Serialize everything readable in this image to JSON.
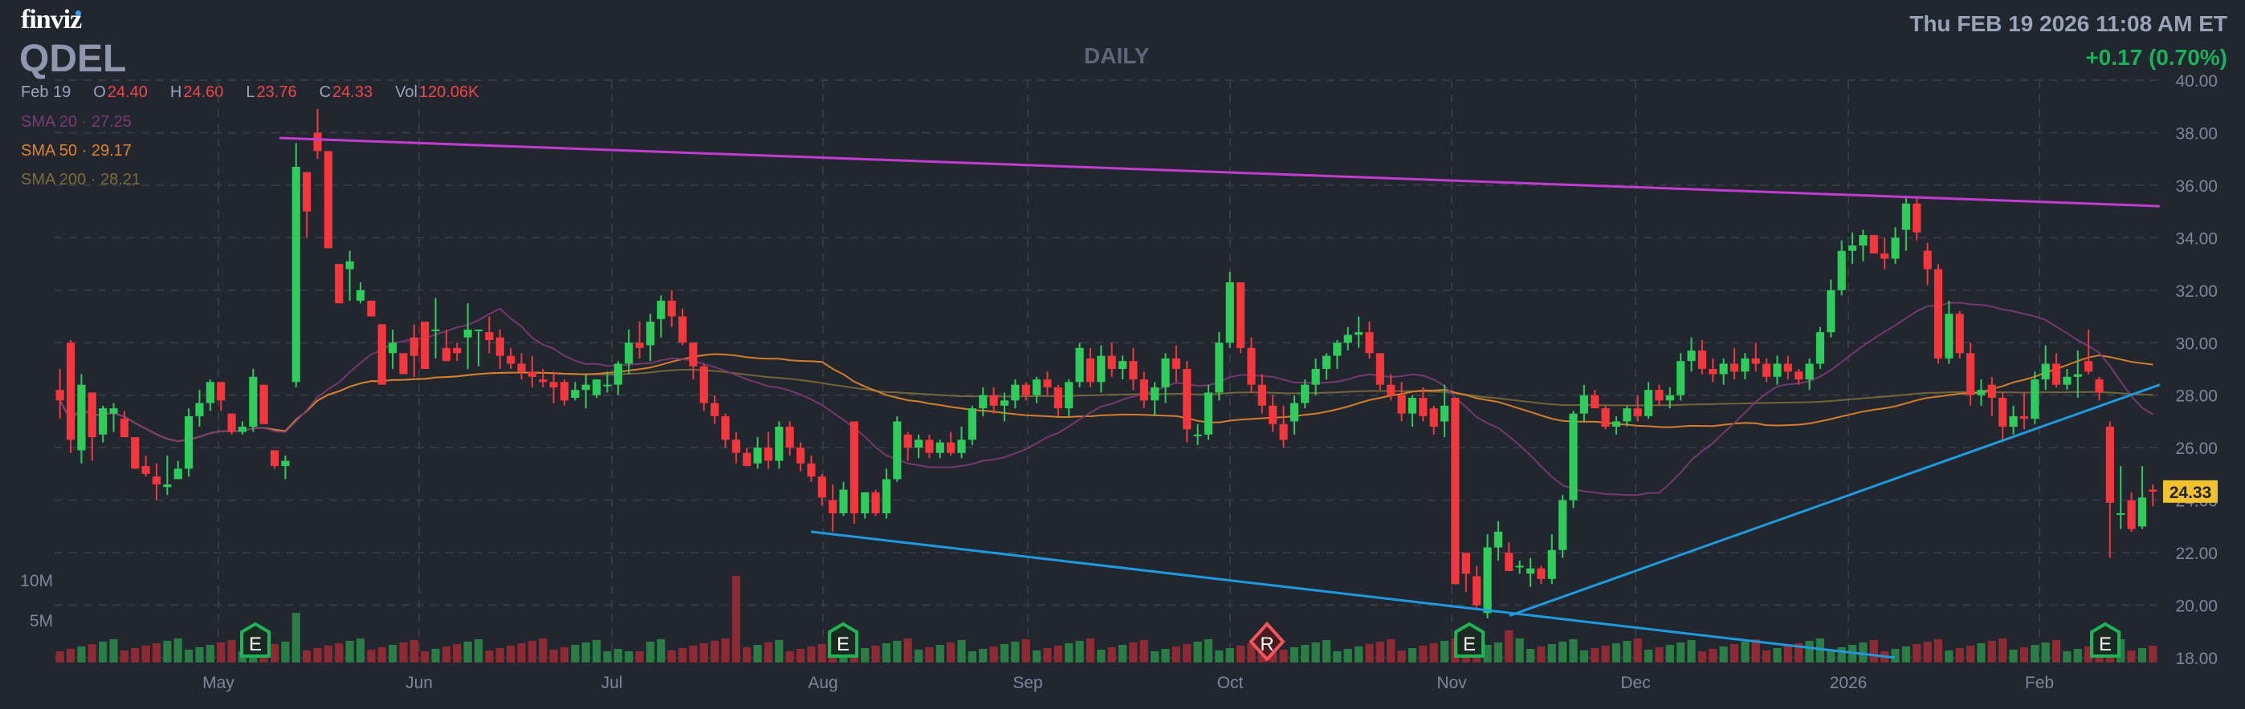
{
  "header": {
    "logo": "finviz",
    "ticker": "QDEL",
    "timeframe": "DAILY",
    "datetime": "Thu FEB 19 2026 11:08 AM ET",
    "change": "+0.17 (0.70%)"
  },
  "ohlc": {
    "date": "Feb 19",
    "open_label": "O",
    "open": "24.40",
    "high_label": "H",
    "high": "24.60",
    "low_label": "L",
    "low": "23.76",
    "close_label": "C",
    "close": "24.33",
    "vol_label": "Vol",
    "vol": "120.06K"
  },
  "indicators": [
    {
      "label": "SMA 20",
      "value": "27.25",
      "color": "#7a3a72"
    },
    {
      "label": "SMA 50",
      "value": "29.17",
      "color": "#e0822a"
    },
    {
      "label": "SMA 200",
      "value": "28.21",
      "color": "#7d6c3a"
    }
  ],
  "last_price_tag": "24.33",
  "colors": {
    "background": "#22262f",
    "up": "#2ecc5a",
    "down": "#f5363d",
    "vol_up": "#2a7d45",
    "vol_down": "#8d2a33",
    "trend_magenta": "#c13ccf",
    "trend_blue": "#1e9be0",
    "price_tag": "#f2c12e"
  },
  "chart_data": {
    "type": "candlestick",
    "title": "QDEL DAILY",
    "ylabel": "Price",
    "ylim": [
      18,
      40
    ],
    "y_ticks": [
      "40.00",
      "38.00",
      "36.00",
      "34.00",
      "32.00",
      "30.00",
      "28.00",
      "26.00",
      "24.00",
      "22.00",
      "20.00",
      "18.00"
    ],
    "x_ticks": [
      "May",
      "Jun",
      "Jul",
      "Aug",
      "Sep",
      "Oct",
      "Nov",
      "Dec",
      "2026",
      "Feb"
    ],
    "volume_ticks": [
      "10M",
      "5M"
    ],
    "grid": true,
    "events": [
      {
        "type": "E",
        "label": "Earnings",
        "x_month": "May"
      },
      {
        "type": "E",
        "label": "Earnings",
        "x_month": "Aug"
      },
      {
        "type": "R",
        "label": "Revenue",
        "x_month": "Oct"
      },
      {
        "type": "E",
        "label": "Earnings",
        "x_month": "Nov"
      },
      {
        "type": "E",
        "label": "Earnings",
        "x_month": "Feb"
      }
    ],
    "trendlines": [
      {
        "color": "magenta",
        "from": {
          "date": "May 9",
          "price": 37.8
        },
        "to": {
          "date": "Feb 19",
          "price": 35.2
        }
      },
      {
        "color": "blue",
        "from": {
          "date": "Aug 1",
          "price": 22.8
        },
        "to": {
          "date": "Jan 5",
          "price": 18.0
        }
      },
      {
        "color": "blue",
        "from": {
          "date": "Nov 10",
          "price": 19.6
        },
        "to": {
          "date": "Feb 19",
          "price": 28.4
        }
      }
    ],
    "series": [
      {
        "name": "SMA 20",
        "last": 27.25
      },
      {
        "name": "SMA 50",
        "last": 29.17
      },
      {
        "name": "SMA 200",
        "last": 28.21
      }
    ],
    "candles": [
      [
        28.2,
        29.0,
        27.1,
        27.8
      ],
      [
        30.0,
        30.1,
        25.8,
        26.3
      ],
      [
        25.9,
        28.8,
        25.4,
        28.4
      ],
      [
        28.1,
        28.1,
        25.5,
        26.4
      ],
      [
        26.5,
        27.6,
        26.2,
        27.5
      ],
      [
        27.3,
        27.7,
        26.6,
        27.5
      ],
      [
        27.1,
        27.4,
        26.4,
        26.4
      ],
      [
        26.4,
        26.4,
        25.4,
        25.2
      ],
      [
        25.3,
        25.7,
        24.9,
        25.0
      ],
      [
        24.9,
        25.4,
        24.0,
        24.6
      ],
      [
        24.5,
        25.7,
        24.2,
        24.6
      ],
      [
        24.8,
        25.5,
        24.8,
        25.2
      ],
      [
        25.2,
        27.5,
        24.9,
        27.2
      ],
      [
        27.2,
        28.2,
        26.8,
        27.7
      ],
      [
        27.7,
        28.6,
        27.4,
        28.5
      ],
      [
        28.5,
        28.5,
        27.4,
        27.8
      ],
      [
        27.3,
        27.3,
        26.5,
        26.6
      ],
      [
        26.6,
        27.0,
        26.5,
        26.8
      ],
      [
        26.8,
        29.0,
        26.6,
        28.7
      ],
      [
        28.4,
        28.4,
        26.9,
        26.9
      ],
      [
        25.9,
        25.9,
        25.2,
        25.3
      ],
      [
        25.3,
        25.7,
        24.8,
        25.5
      ],
      [
        28.5,
        37.6,
        28.3,
        36.7
      ],
      [
        36.5,
        36.5,
        34.0,
        35.0
      ],
      [
        38.0,
        38.9,
        37.0,
        37.3
      ],
      [
        37.3,
        37.0,
        33.9,
        33.6
      ],
      [
        33.0,
        32.9,
        31.8,
        31.5
      ],
      [
        32.8,
        33.5,
        31.6,
        33.1
      ],
      [
        31.6,
        32.3,
        31.5,
        32.0
      ],
      [
        31.6,
        31.4,
        31.3,
        31.0
      ],
      [
        30.7,
        30.6,
        29.2,
        28.4
      ],
      [
        29.6,
        30.5,
        29.0,
        30.0
      ],
      [
        29.6,
        29.6,
        29.4,
        28.8
      ],
      [
        30.2,
        30.7,
        28.7,
        29.5
      ],
      [
        30.8,
        30.5,
        29.6,
        29.0
      ],
      [
        30.5,
        31.7,
        29.4,
        30.5
      ],
      [
        29.8,
        30.5,
        29.8,
        29.3
      ],
      [
        29.8,
        30.0,
        29.3,
        29.6
      ],
      [
        30.2,
        31.5,
        29.0,
        30.5
      ],
      [
        30.5,
        30.5,
        29.1,
        30.5
      ],
      [
        30.4,
        31.0,
        29.6,
        30.1
      ],
      [
        30.2,
        30.5,
        29.0,
        29.5
      ],
      [
        29.5,
        29.8,
        29.0,
        29.2
      ],
      [
        29.2,
        29.6,
        28.6,
        28.9
      ],
      [
        28.9,
        29.5,
        28.3,
        28.7
      ],
      [
        28.6,
        29.0,
        28.3,
        28.5
      ],
      [
        28.5,
        28.9,
        27.7,
        28.3
      ],
      [
        28.5,
        28.6,
        27.6,
        27.8
      ],
      [
        27.9,
        28.5,
        27.8,
        28.2
      ],
      [
        28.2,
        28.8,
        27.5,
        28.4
      ],
      [
        28.0,
        28.6,
        27.9,
        28.6
      ],
      [
        28.4,
        28.9,
        28.1,
        28.4
      ],
      [
        28.4,
        29.3,
        28.0,
        29.2
      ],
      [
        29.2,
        30.5,
        28.8,
        30.0
      ],
      [
        30.0,
        30.8,
        29.4,
        29.8
      ],
      [
        29.9,
        31.1,
        29.3,
        30.8
      ],
      [
        30.9,
        31.8,
        30.2,
        31.6
      ],
      [
        31.6,
        32.0,
        30.6,
        31.0
      ],
      [
        31.0,
        31.3,
        29.9,
        30.0
      ],
      [
        30.0,
        30.0,
        28.6,
        29.1
      ],
      [
        29.1,
        29.2,
        27.4,
        27.7
      ],
      [
        27.7,
        28.0,
        26.9,
        27.2
      ],
      [
        27.2,
        27.3,
        26.0,
        26.3
      ],
      [
        26.3,
        26.6,
        25.4,
        25.8
      ],
      [
        25.8,
        26.0,
        25.3,
        25.3
      ],
      [
        25.4,
        26.4,
        25.2,
        26.0
      ],
      [
        26.0,
        26.6,
        25.2,
        25.5
      ],
      [
        25.5,
        27.0,
        25.2,
        26.8
      ],
      [
        26.8,
        27.0,
        25.7,
        26.0
      ],
      [
        26.0,
        26.2,
        25.1,
        25.4
      ],
      [
        25.4,
        25.7,
        24.7,
        24.9
      ],
      [
        24.9,
        25.0,
        23.8,
        24.1
      ],
      [
        24.0,
        24.6,
        22.8,
        23.5
      ],
      [
        23.5,
        24.7,
        23.4,
        24.4
      ],
      [
        27.0,
        27.0,
        23.1,
        23.5
      ],
      [
        23.5,
        24.3,
        23.3,
        24.3
      ],
      [
        24.3,
        24.4,
        23.4,
        23.5
      ],
      [
        23.5,
        25.2,
        23.3,
        24.8
      ],
      [
        24.8,
        27.2,
        24.7,
        27.0
      ],
      [
        26.5,
        26.6,
        25.5,
        26.0
      ],
      [
        26.0,
        26.5,
        25.6,
        26.3
      ],
      [
        26.3,
        26.5,
        25.6,
        25.8
      ],
      [
        25.8,
        26.3,
        25.6,
        26.2
      ],
      [
        26.2,
        26.6,
        25.7,
        25.8
      ],
      [
        25.8,
        26.8,
        25.6,
        26.3
      ],
      [
        26.3,
        27.6,
        26.1,
        27.5
      ],
      [
        27.5,
        28.3,
        27.2,
        28.0
      ],
      [
        28.0,
        28.3,
        27.3,
        27.6
      ],
      [
        27.6,
        28.1,
        27.0,
        27.8
      ],
      [
        27.8,
        28.6,
        27.5,
        28.4
      ],
      [
        28.4,
        28.5,
        27.8,
        28.0
      ],
      [
        28.0,
        28.7,
        27.7,
        28.6
      ],
      [
        28.6,
        28.9,
        28.0,
        28.3
      ],
      [
        28.3,
        28.4,
        27.2,
        27.5
      ],
      [
        27.5,
        28.6,
        27.2,
        28.5
      ],
      [
        28.5,
        30.0,
        28.3,
        29.8
      ],
      [
        29.4,
        29.8,
        28.3,
        28.5
      ],
      [
        28.5,
        29.9,
        28.1,
        29.5
      ],
      [
        29.5,
        30.0,
        28.7,
        29.0
      ],
      [
        29.0,
        29.5,
        28.6,
        29.3
      ],
      [
        29.3,
        29.8,
        28.2,
        28.6
      ],
      [
        28.6,
        28.9,
        27.5,
        27.8
      ],
      [
        27.8,
        28.5,
        27.2,
        28.3
      ],
      [
        28.3,
        29.6,
        27.7,
        29.4
      ],
      [
        29.4,
        29.9,
        28.5,
        29.0
      ],
      [
        29.0,
        29.3,
        26.2,
        26.7
      ],
      [
        26.5,
        26.9,
        26.1,
        26.5
      ],
      [
        26.5,
        28.4,
        26.3,
        28.1
      ],
      [
        28.1,
        30.4,
        27.8,
        30.0
      ],
      [
        30.0,
        32.7,
        29.8,
        32.3
      ],
      [
        32.3,
        32.0,
        29.6,
        29.8
      ],
      [
        29.8,
        30.2,
        28.1,
        28.4
      ],
      [
        28.4,
        28.8,
        27.3,
        27.6
      ],
      [
        27.6,
        28.0,
        26.6,
        26.9
      ],
      [
        26.9,
        27.6,
        26.0,
        26.3
      ],
      [
        27.0,
        28.0,
        26.5,
        27.7
      ],
      [
        27.7,
        28.6,
        27.5,
        28.4
      ],
      [
        28.4,
        29.4,
        28.0,
        29.0
      ],
      [
        29.0,
        29.6,
        28.6,
        29.5
      ],
      [
        29.5,
        30.1,
        29.0,
        30.0
      ],
      [
        30.0,
        30.6,
        29.7,
        30.3
      ],
      [
        30.3,
        31.0,
        29.8,
        30.4
      ],
      [
        30.4,
        30.8,
        29.4,
        29.6
      ],
      [
        29.6,
        29.6,
        28.2,
        28.4
      ],
      [
        28.4,
        28.8,
        27.8,
        28.0
      ],
      [
        28.0,
        28.5,
        27.0,
        27.3
      ],
      [
        27.3,
        28.0,
        26.8,
        27.9
      ],
      [
        27.9,
        28.3,
        27.0,
        27.2
      ],
      [
        27.5,
        27.6,
        26.5,
        26.8
      ],
      [
        27.0,
        28.4,
        26.4,
        27.6
      ],
      [
        27.9,
        26.3,
        24.0,
        20.8
      ],
      [
        22.0,
        22.0,
        20.5,
        21.2
      ],
      [
        21.1,
        21.5,
        19.9,
        20.0
      ],
      [
        19.7,
        22.7,
        19.5,
        22.2
      ],
      [
        22.2,
        23.2,
        21.7,
        22.8
      ],
      [
        22.0,
        22.4,
        21.3,
        21.3
      ],
      [
        21.5,
        21.7,
        21.2,
        21.5
      ],
      [
        21.2,
        21.8,
        20.7,
        21.4
      ],
      [
        21.4,
        21.5,
        20.8,
        21.0
      ],
      [
        21.0,
        22.7,
        20.8,
        22.1
      ],
      [
        22.1,
        24.2,
        21.8,
        24.0
      ],
      [
        24.0,
        27.4,
        23.7,
        27.3
      ],
      [
        27.3,
        28.4,
        27.0,
        28.0
      ],
      [
        28.0,
        28.2,
        27.5,
        27.5
      ],
      [
        27.5,
        27.6,
        26.7,
        26.8
      ],
      [
        26.8,
        27.2,
        26.5,
        27.0
      ],
      [
        27.0,
        27.6,
        26.8,
        27.5
      ],
      [
        27.5,
        28.0,
        27.0,
        27.2
      ],
      [
        27.2,
        28.5,
        27.1,
        28.2
      ],
      [
        28.2,
        28.4,
        27.6,
        27.8
      ],
      [
        27.8,
        28.3,
        27.5,
        28.0
      ],
      [
        28.0,
        29.6,
        27.8,
        29.3
      ],
      [
        29.3,
        30.2,
        28.9,
        29.7
      ],
      [
        29.7,
        30.1,
        28.8,
        29.0
      ],
      [
        29.0,
        29.4,
        28.5,
        28.8
      ],
      [
        28.8,
        29.4,
        28.4,
        29.2
      ],
      [
        29.2,
        29.8,
        28.6,
        28.9
      ],
      [
        28.9,
        29.6,
        28.6,
        29.4
      ],
      [
        29.4,
        30.0,
        28.9,
        29.2
      ],
      [
        29.2,
        29.4,
        28.5,
        28.7
      ],
      [
        28.7,
        29.5,
        28.4,
        29.2
      ],
      [
        29.2,
        29.5,
        28.6,
        28.9
      ],
      [
        28.9,
        29.0,
        28.4,
        28.6
      ],
      [
        28.6,
        29.4,
        28.2,
        29.2
      ],
      [
        29.2,
        30.6,
        29.0,
        30.4
      ],
      [
        30.4,
        32.4,
        30.2,
        32.0
      ],
      [
        32.0,
        33.9,
        31.8,
        33.5
      ],
      [
        33.5,
        34.2,
        33.0,
        33.7
      ],
      [
        33.7,
        34.3,
        33.1,
        34.1
      ],
      [
        34.1,
        33.9,
        33.5,
        33.4
      ],
      [
        33.4,
        34.0,
        32.8,
        33.2
      ],
      [
        33.2,
        34.4,
        33.0,
        34.0
      ],
      [
        34.3,
        35.6,
        33.5,
        35.3
      ],
      [
        35.3,
        35.5,
        33.9,
        34.2
      ],
      [
        33.5,
        33.8,
        32.2,
        32.8
      ],
      [
        32.8,
        33.0,
        29.2,
        29.4
      ],
      [
        29.4,
        31.6,
        29.2,
        31.1
      ],
      [
        31.1,
        31.2,
        29.4,
        29.6
      ],
      [
        29.6,
        30.0,
        27.6,
        28.0
      ],
      [
        28.0,
        28.6,
        27.6,
        28.2
      ],
      [
        28.4,
        28.7,
        27.2,
        27.9
      ],
      [
        27.9,
        28.1,
        26.2,
        26.8
      ],
      [
        26.8,
        27.6,
        26.5,
        27.2
      ],
      [
        27.2,
        28.1,
        26.7,
        27.1
      ],
      [
        27.1,
        28.9,
        26.9,
        28.6
      ],
      [
        28.6,
        29.9,
        28.2,
        29.2
      ],
      [
        29.2,
        29.6,
        28.3,
        28.4
      ],
      [
        28.4,
        29.0,
        28.2,
        28.7
      ],
      [
        28.7,
        29.7,
        27.9,
        28.8
      ],
      [
        29.3,
        30.5,
        28.8,
        28.9
      ],
      [
        28.6,
        28.7,
        27.8,
        28.1
      ],
      [
        26.8,
        27.0,
        21.8,
        23.9
      ],
      [
        23.5,
        25.3,
        22.9,
        23.5
      ],
      [
        24.0,
        24.3,
        22.8,
        22.9
      ],
      [
        23.0,
        25.3,
        22.9,
        24.1
      ],
      [
        24.4,
        24.6,
        23.76,
        24.33
      ]
    ]
  }
}
